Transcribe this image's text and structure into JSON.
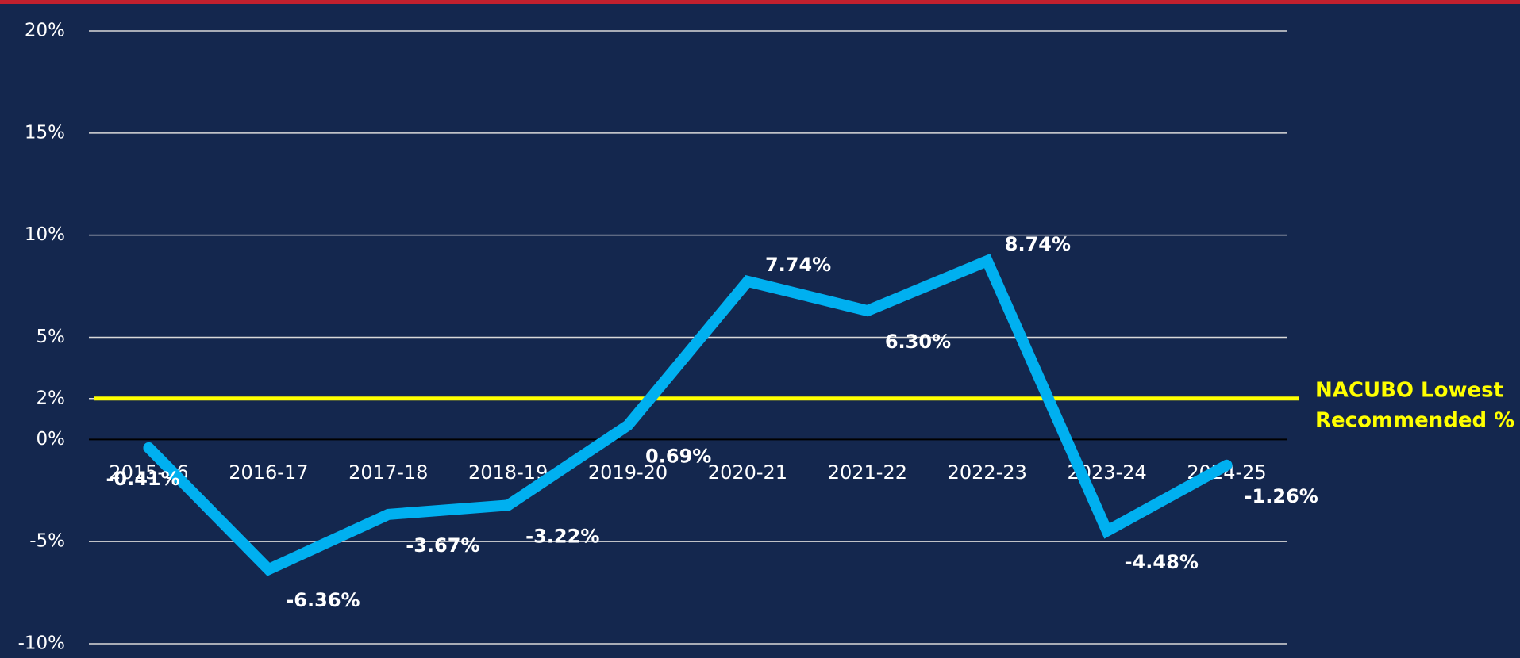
{
  "chart_data": {
    "type": "line",
    "categories": [
      "2015-16",
      "2016-17",
      "2017-18",
      "2018-19",
      "2019-20",
      "2020-21",
      "2021-22",
      "2022-23",
      "2023-24",
      "2024-25"
    ],
    "series": [
      {
        "color": "#00b0f0",
        "values": [
          -0.41,
          -6.36,
          -3.67,
          -3.22,
          0.69,
          7.74,
          6.3,
          8.74,
          -4.48,
          -1.26
        ],
        "value_labels": [
          "-0.41%",
          "-6.36%",
          "-3.67%",
          "-3.22%",
          "0.69%",
          "7.74%",
          "6.30%",
          "8.74%",
          "-4.48%",
          "-1.26%"
        ]
      }
    ],
    "ylim": [
      -10,
      20
    ],
    "yticks": [
      {
        "value": -10,
        "label": "-10%"
      },
      {
        "value": -5,
        "label": "-5%"
      },
      {
        "value": 0,
        "label": "0%"
      },
      {
        "value": 2,
        "label": "2%"
      },
      {
        "value": 5,
        "label": "5%"
      },
      {
        "value": 10,
        "label": "10%"
      },
      {
        "value": 15,
        "label": "15%"
      },
      {
        "value": 20,
        "label": "20%"
      }
    ],
    "grid": true,
    "reference_line": {
      "value": 2,
      "color": "#ffff00",
      "label": [
        "NACUBO Lowest",
        "Recommended %"
      ]
    }
  }
}
